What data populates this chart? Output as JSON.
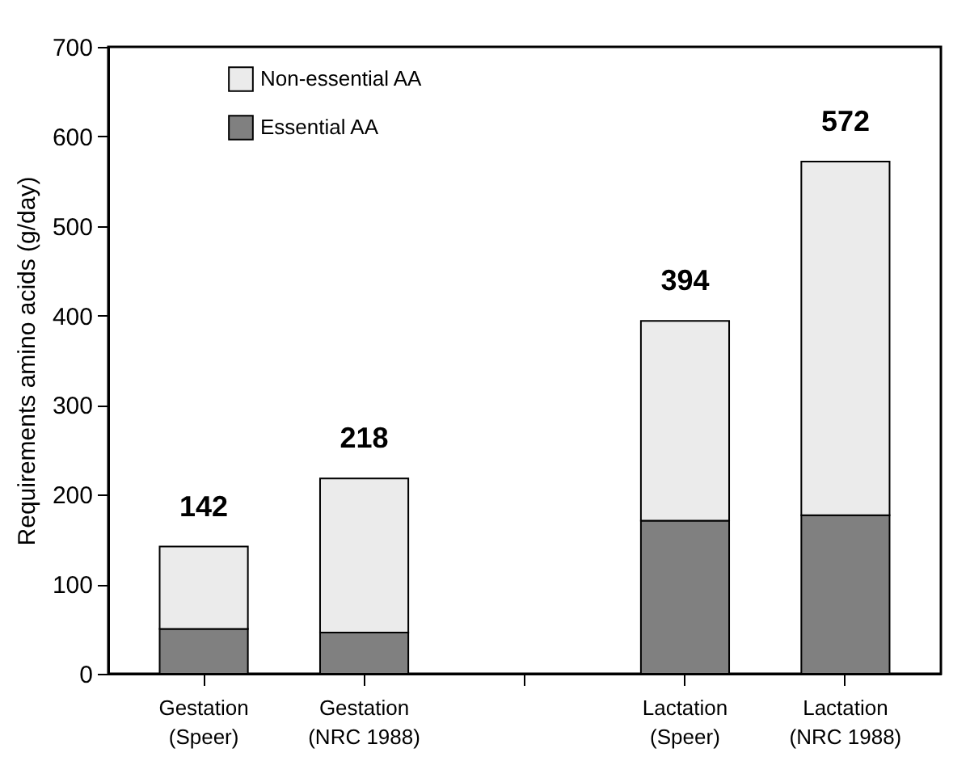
{
  "chart_data": {
    "type": "bar",
    "stacked": true,
    "ylabel": "Requirements amino acids (g/day)",
    "categories": [
      "Gestation (Speer)",
      "Gestation (NRC 1988)",
      null,
      "Lactation (Speer)",
      "Lactation (NRC 1988)"
    ],
    "series": [
      {
        "name": "Essential AA",
        "color": "#808080",
        "values": [
          50,
          46,
          null,
          171,
          177
        ]
      },
      {
        "name": "Non-essential AA",
        "color": "#ebebeb",
        "values": [
          92,
          172,
          null,
          223,
          395
        ]
      }
    ],
    "totals": [
      "142",
      "218",
      null,
      "394",
      "572"
    ],
    "ylim": [
      0,
      700
    ],
    "yticks": [
      0,
      100,
      200,
      300,
      400,
      500,
      600,
      700
    ],
    "legend": "top left"
  }
}
